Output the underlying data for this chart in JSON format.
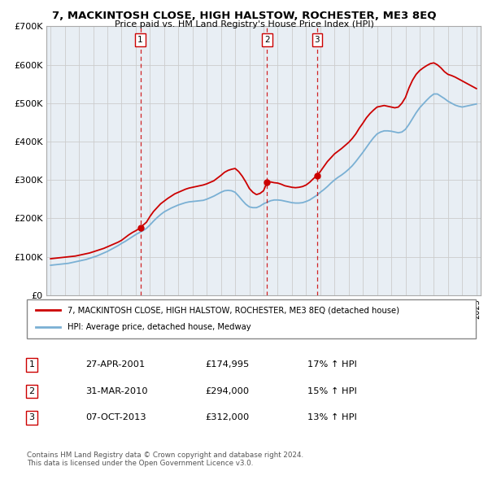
{
  "title": "7, MACKINTOSH CLOSE, HIGH HALSTOW, ROCHESTER, ME3 8EQ",
  "subtitle": "Price paid vs. HM Land Registry's House Price Index (HPI)",
  "legend_line1": "7, MACKINTOSH CLOSE, HIGH HALSTOW, ROCHESTER, ME3 8EQ (detached house)",
  "legend_line2": "HPI: Average price, detached house, Medway",
  "footer": "Contains HM Land Registry data © Crown copyright and database right 2024.\nThis data is licensed under the Open Government Licence v3.0.",
  "transactions": [
    {
      "label": "1",
      "date": "27-APR-2001",
      "price": "£174,995",
      "hpi": "17% ↑ HPI",
      "year": 2001.32,
      "price_val": 174995
    },
    {
      "label": "2",
      "date": "31-MAR-2010",
      "price": "£294,000",
      "hpi": "15% ↑ HPI",
      "year": 2010.25,
      "price_val": 294000
    },
    {
      "label": "3",
      "date": "07-OCT-2013",
      "price": "£312,000",
      "hpi": "13% ↑ HPI",
      "year": 2013.77,
      "price_val": 312000
    }
  ],
  "red_line_x": [
    1995.0,
    1995.25,
    1995.5,
    1995.75,
    1996.0,
    1996.25,
    1996.5,
    1996.75,
    1997.0,
    1997.25,
    1997.5,
    1997.75,
    1998.0,
    1998.25,
    1998.5,
    1998.75,
    1999.0,
    1999.25,
    1999.5,
    1999.75,
    2000.0,
    2000.25,
    2000.5,
    2000.75,
    2001.0,
    2001.32,
    2001.5,
    2001.75,
    2002.0,
    2002.25,
    2002.5,
    2002.75,
    2003.0,
    2003.25,
    2003.5,
    2003.75,
    2004.0,
    2004.25,
    2004.5,
    2004.75,
    2005.0,
    2005.25,
    2005.5,
    2005.75,
    2006.0,
    2006.25,
    2006.5,
    2006.75,
    2007.0,
    2007.25,
    2007.5,
    2007.75,
    2008.0,
    2008.25,
    2008.5,
    2008.75,
    2009.0,
    2009.25,
    2009.5,
    2009.75,
    2010.0,
    2010.25,
    2010.5,
    2010.75,
    2011.0,
    2011.25,
    2011.5,
    2011.75,
    2012.0,
    2012.25,
    2012.5,
    2012.75,
    2013.0,
    2013.25,
    2013.5,
    2013.77,
    2014.0,
    2014.25,
    2014.5,
    2014.75,
    2015.0,
    2015.25,
    2015.5,
    2015.75,
    2016.0,
    2016.25,
    2016.5,
    2016.75,
    2017.0,
    2017.25,
    2017.5,
    2017.75,
    2018.0,
    2018.25,
    2018.5,
    2018.75,
    2019.0,
    2019.25,
    2019.5,
    2019.75,
    2020.0,
    2020.25,
    2020.5,
    2020.75,
    2021.0,
    2021.25,
    2021.5,
    2021.75,
    2022.0,
    2022.25,
    2022.5,
    2022.75,
    2023.0,
    2023.25,
    2023.5,
    2023.75,
    2024.0,
    2024.25,
    2024.5,
    2024.75,
    2025.0
  ],
  "red_line_y": [
    95000,
    96000,
    97000,
    98000,
    99000,
    100000,
    101000,
    102000,
    104000,
    106000,
    108000,
    110000,
    113000,
    116000,
    119000,
    122000,
    126000,
    130000,
    134000,
    138000,
    143000,
    150000,
    157000,
    163000,
    168000,
    174995,
    182000,
    190000,
    205000,
    218000,
    228000,
    238000,
    245000,
    252000,
    258000,
    264000,
    268000,
    272000,
    276000,
    279000,
    281000,
    283000,
    285000,
    287000,
    290000,
    294000,
    298000,
    305000,
    312000,
    320000,
    325000,
    328000,
    330000,
    322000,
    310000,
    295000,
    278000,
    268000,
    262000,
    265000,
    272000,
    294000,
    295000,
    293000,
    292000,
    289000,
    285000,
    283000,
    281000,
    280000,
    281000,
    283000,
    287000,
    294000,
    303000,
    312000,
    322000,
    335000,
    348000,
    358000,
    368000,
    375000,
    382000,
    390000,
    398000,
    408000,
    420000,
    435000,
    448000,
    462000,
    473000,
    482000,
    490000,
    492000,
    494000,
    492000,
    490000,
    488000,
    490000,
    500000,
    515000,
    540000,
    560000,
    575000,
    585000,
    592000,
    598000,
    603000,
    605000,
    600000,
    592000,
    582000,
    575000,
    572000,
    568000,
    563000,
    558000,
    553000,
    548000,
    543000,
    538000
  ],
  "blue_line_x": [
    1995.0,
    1995.25,
    1995.5,
    1995.75,
    1996.0,
    1996.25,
    1996.5,
    1996.75,
    1997.0,
    1997.25,
    1997.5,
    1997.75,
    1998.0,
    1998.25,
    1998.5,
    1998.75,
    1999.0,
    1999.25,
    1999.5,
    1999.75,
    2000.0,
    2000.25,
    2000.5,
    2000.75,
    2001.0,
    2001.5,
    2001.75,
    2002.0,
    2002.25,
    2002.5,
    2002.75,
    2003.0,
    2003.25,
    2003.5,
    2003.75,
    2004.0,
    2004.25,
    2004.5,
    2004.75,
    2005.0,
    2005.25,
    2005.5,
    2005.75,
    2006.0,
    2006.25,
    2006.5,
    2006.75,
    2007.0,
    2007.25,
    2007.5,
    2007.75,
    2008.0,
    2008.25,
    2008.5,
    2008.75,
    2009.0,
    2009.25,
    2009.5,
    2009.75,
    2010.0,
    2010.5,
    2010.75,
    2011.0,
    2011.25,
    2011.5,
    2011.75,
    2012.0,
    2012.25,
    2012.5,
    2012.75,
    2013.0,
    2013.25,
    2013.5,
    2013.75,
    2014.0,
    2014.25,
    2014.5,
    2014.75,
    2015.0,
    2015.25,
    2015.5,
    2015.75,
    2016.0,
    2016.25,
    2016.5,
    2016.75,
    2017.0,
    2017.25,
    2017.5,
    2017.75,
    2018.0,
    2018.25,
    2018.5,
    2018.75,
    2019.0,
    2019.25,
    2019.5,
    2019.75,
    2020.0,
    2020.25,
    2020.5,
    2020.75,
    2021.0,
    2021.25,
    2021.5,
    2021.75,
    2022.0,
    2022.25,
    2022.5,
    2022.75,
    2023.0,
    2023.25,
    2023.5,
    2023.75,
    2024.0,
    2024.25,
    2024.5,
    2024.75,
    2025.0
  ],
  "blue_line_y": [
    78000,
    79000,
    80000,
    81000,
    82000,
    83000,
    85000,
    87000,
    89000,
    91000,
    93000,
    96000,
    99000,
    102000,
    106000,
    110000,
    114000,
    119000,
    124000,
    129000,
    135000,
    140000,
    146000,
    152000,
    158000,
    168000,
    174000,
    183000,
    193000,
    202000,
    210000,
    217000,
    222000,
    227000,
    231000,
    235000,
    238000,
    241000,
    243000,
    244000,
    245000,
    246000,
    247000,
    250000,
    254000,
    258000,
    263000,
    268000,
    272000,
    273000,
    272000,
    268000,
    258000,
    247000,
    237000,
    230000,
    228000,
    228000,
    232000,
    238000,
    246000,
    248000,
    248000,
    247000,
    245000,
    243000,
    241000,
    240000,
    240000,
    241000,
    244000,
    248000,
    254000,
    260000,
    268000,
    275000,
    283000,
    292000,
    300000,
    307000,
    313000,
    320000,
    328000,
    337000,
    348000,
    360000,
    372000,
    385000,
    398000,
    410000,
    420000,
    425000,
    428000,
    428000,
    427000,
    425000,
    423000,
    425000,
    432000,
    445000,
    460000,
    475000,
    488000,
    498000,
    508000,
    517000,
    524000,
    524000,
    518000,
    512000,
    505000,
    500000,
    495000,
    492000,
    490000,
    492000,
    494000,
    496000,
    498000
  ],
  "ylim": [
    0,
    700000
  ],
  "yticks": [
    0,
    100000,
    200000,
    300000,
    400000,
    500000,
    600000,
    700000
  ],
  "ytick_labels": [
    "£0",
    "£100K",
    "£200K",
    "£300K",
    "£400K",
    "£500K",
    "£600K",
    "£700K"
  ],
  "xlim": [
    1994.7,
    2025.3
  ],
  "xticks": [
    1995,
    1996,
    1997,
    1998,
    1999,
    2000,
    2001,
    2002,
    2003,
    2004,
    2005,
    2006,
    2007,
    2008,
    2009,
    2010,
    2011,
    2012,
    2013,
    2014,
    2015,
    2016,
    2017,
    2018,
    2019,
    2020,
    2021,
    2022,
    2023,
    2024,
    2025
  ],
  "red_color": "#cc0000",
  "blue_color": "#7ab0d4",
  "grid_color": "#cccccc",
  "plot_bg": "#e8eef4",
  "fig_bg": "#ffffff",
  "border_color": "#aaaaaa"
}
